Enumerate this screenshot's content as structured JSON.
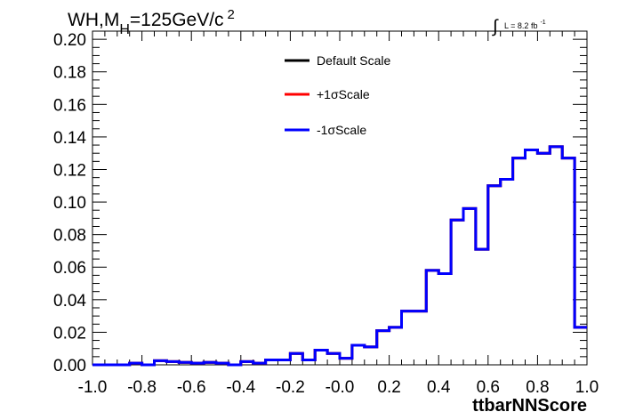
{
  "header": {
    "title_prefix": "WH,M",
    "title_sub": "H",
    "title_main": "=125GeV/c",
    "title_sup": "2",
    "lumi_integral": "∫",
    "lumi_text": "L = 8.2 fb",
    "lumi_sup": "-1"
  },
  "chart_data": {
    "type": "line",
    "style": "step-histogram",
    "xlabel": "ttbarNNScore",
    "ylabel": "",
    "xlim": [
      -1.0,
      1.0
    ],
    "ylim": [
      0.0,
      0.205
    ],
    "xticks": [
      "-1.0",
      "-0.8",
      "-0.6",
      "-0.4",
      "-0.2",
      "-0.0",
      "0.2",
      "0.4",
      "0.6",
      "0.8",
      "1.0"
    ],
    "yticks": [
      "0.00",
      "0.02",
      "0.04",
      "0.06",
      "0.08",
      "0.10",
      "0.12",
      "0.14",
      "0.16",
      "0.18",
      "0.20"
    ],
    "bin_edges": [
      -1.0,
      -0.95,
      -0.9,
      -0.85,
      -0.8,
      -0.75,
      -0.7,
      -0.65,
      -0.6,
      -0.55,
      -0.5,
      -0.45,
      -0.4,
      -0.35,
      -0.3,
      -0.25,
      -0.2,
      -0.15,
      -0.1,
      -0.05,
      0.0,
      0.05,
      0.1,
      0.15,
      0.2,
      0.25,
      0.3,
      0.35,
      0.4,
      0.45,
      0.5,
      0.55,
      0.6,
      0.65,
      0.7,
      0.75,
      0.8,
      0.85,
      0.9,
      0.95,
      1.0
    ],
    "series": [
      {
        "name": "Default Scale",
        "color": "#000000",
        "values": [
          0.0,
          0.0,
          0.0,
          0.001,
          0.0,
          0.0025,
          0.002,
          0.0015,
          0.001,
          0.0015,
          0.001,
          0.0,
          0.002,
          0.001,
          0.003,
          0.003,
          0.007,
          0.003,
          0.009,
          0.007,
          0.004,
          0.012,
          0.011,
          0.021,
          0.023,
          0.033,
          0.033,
          0.058,
          0.056,
          0.089,
          0.096,
          0.071,
          0.11,
          0.114,
          0.127,
          0.132,
          0.13,
          0.134,
          0.127,
          0.023
        ]
      },
      {
        "name": "+1σScale",
        "color": "#ff0000",
        "values": [
          0.0,
          0.0,
          0.0,
          0.001,
          0.0,
          0.0025,
          0.002,
          0.0015,
          0.001,
          0.0015,
          0.001,
          0.0,
          0.002,
          0.001,
          0.003,
          0.003,
          0.007,
          0.003,
          0.009,
          0.007,
          0.004,
          0.012,
          0.011,
          0.021,
          0.023,
          0.033,
          0.033,
          0.058,
          0.056,
          0.089,
          0.096,
          0.071,
          0.11,
          0.114,
          0.127,
          0.132,
          0.13,
          0.134,
          0.127,
          0.023
        ]
      },
      {
        "name": "-1σScale",
        "color": "#0000ff",
        "values": [
          0.0,
          0.0,
          0.0,
          0.001,
          0.0,
          0.0025,
          0.002,
          0.0015,
          0.001,
          0.0015,
          0.001,
          0.0,
          0.002,
          0.001,
          0.003,
          0.003,
          0.007,
          0.003,
          0.009,
          0.007,
          0.004,
          0.012,
          0.011,
          0.021,
          0.023,
          0.033,
          0.033,
          0.058,
          0.056,
          0.089,
          0.096,
          0.071,
          0.11,
          0.114,
          0.127,
          0.132,
          0.13,
          0.134,
          0.127,
          0.023
        ]
      }
    ],
    "legend_position": "top-center",
    "grid": false
  }
}
